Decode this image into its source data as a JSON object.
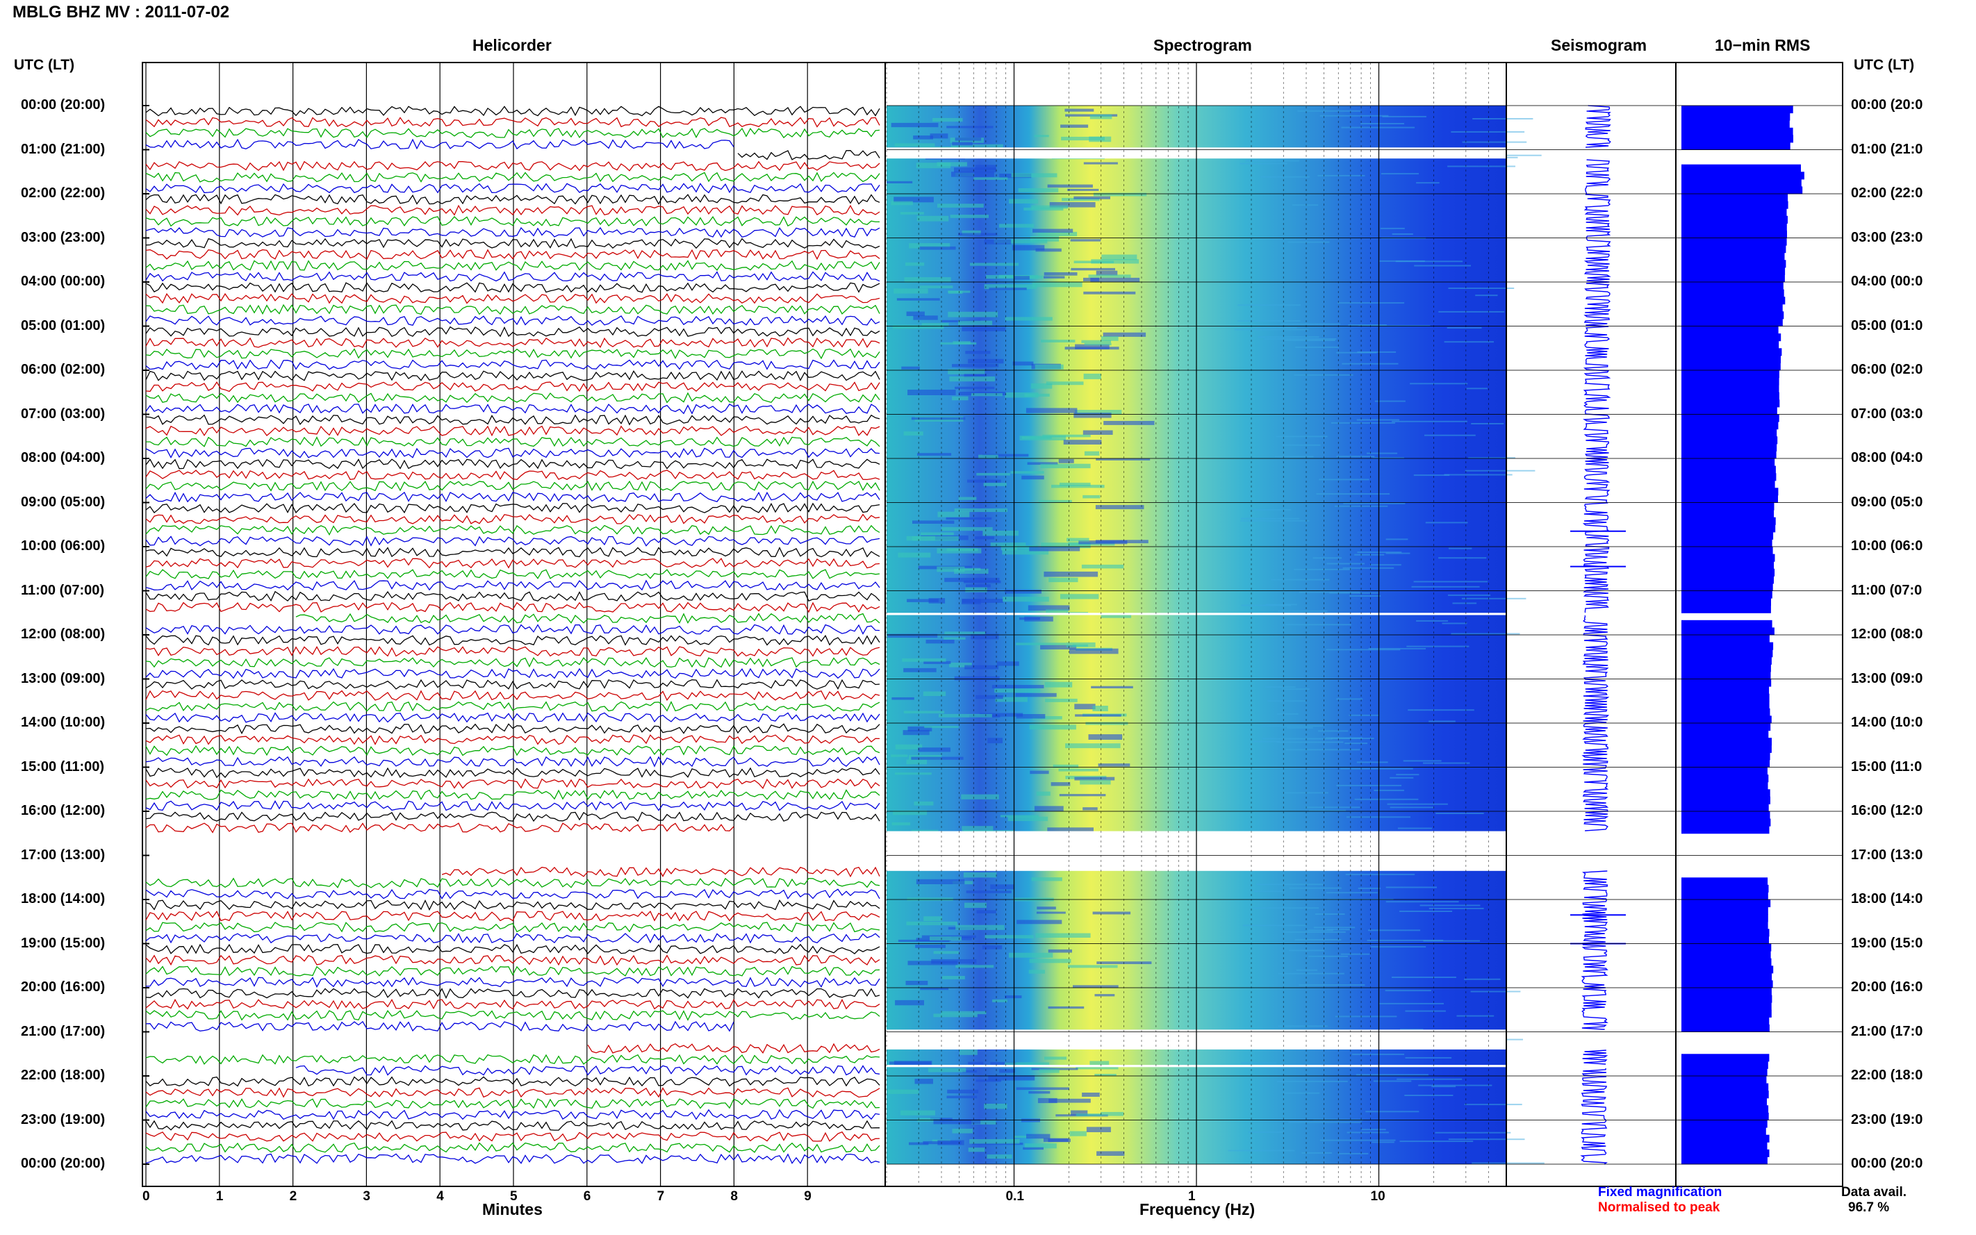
{
  "page_title": "MBLG BHZ MV : 2011-07-02",
  "panels": {
    "helicorder": "Helicorder",
    "spectrogram": "Spectrogram",
    "seismogram": "Seismogram",
    "rms": "10−min RMS"
  },
  "utc_label_left": "UTC (LT)",
  "utc_label_right": "UTC (LT)",
  "chart_data": {
    "type": "heatmap",
    "hours_left": [
      "00:00 (20:00)",
      "01:00 (21:00)",
      "02:00 (22:00)",
      "03:00 (23:00)",
      "04:00 (00:00)",
      "05:00 (01:00)",
      "06:00 (02:00)",
      "07:00 (03:00)",
      "08:00 (04:00)",
      "09:00 (05:00)",
      "10:00 (06:00)",
      "11:00 (07:00)",
      "12:00 (08:00)",
      "13:00 (09:00)",
      "14:00 (10:00)",
      "15:00 (11:00)",
      "16:00 (12:00)",
      "17:00 (13:00)",
      "18:00 (14:00)",
      "19:00 (15:00)",
      "20:00 (16:00)",
      "21:00 (17:00)",
      "22:00 (18:00)",
      "23:00 (19:00)",
      "00:00 (20:00)"
    ],
    "hours_right": [
      "00:00 (20:0",
      "01:00 (21:0",
      "02:00 (22:0",
      "03:00 (23:0",
      "04:00 (00:0",
      "05:00 (01:0",
      "06:00 (02:0",
      "07:00 (03:0",
      "08:00 (04:0",
      "09:00 (05:0",
      "10:00 (06:0",
      "11:00 (07:0",
      "12:00 (08:0",
      "13:00 (09:0",
      "14:00 (10:0",
      "15:00 (11:0",
      "16:00 (12:0",
      "17:00 (13:0",
      "18:00 (14:0",
      "19:00 (15:0",
      "20:00 (16:0",
      "21:00 (17:0",
      "22:00 (18:0",
      "23:00 (19:0",
      "00:00 (20:0"
    ],
    "minute_ticks": [
      "0",
      "1",
      "2",
      "3",
      "4",
      "5",
      "6",
      "7",
      "8",
      "9"
    ],
    "minute_range": [
      0,
      10
    ],
    "xlabel_minutes": "Minutes",
    "freq_ticks": [
      0.1,
      1,
      10
    ],
    "freq_tick_labels": [
      "0.1",
      "1",
      "10"
    ],
    "freq_range": [
      0.02,
      50
    ],
    "freq_scale": "log",
    "xlabel_freq": "Frequency (Hz)",
    "trace_colors": [
      "#000000",
      "#cc0000",
      "#00aa00",
      "#0000dd"
    ],
    "data_gaps_hours": [
      [
        0.95,
        1.2
      ],
      [
        11.5,
        11.55
      ],
      [
        16.45,
        17.35
      ],
      [
        20.95,
        21.4
      ],
      [
        21.75,
        21.8
      ]
    ],
    "seismogram_events_hours": [
      9.65,
      10.45,
      18.35,
      19.0
    ],
    "rms_profile": [
      0.88,
      0.97,
      0.84,
      0.84,
      0.82,
      0.79,
      0.78,
      0.77,
      0.76,
      0.74,
      0.74,
      0.73,
      0.72,
      0.71,
      0.71,
      0.7,
      0.7,
      0.69,
      0.7,
      0.72,
      0.71,
      0.7,
      0.69,
      0.69
    ]
  },
  "legend": {
    "fixed": "Fixed magnification",
    "normalised": "Normalised to peak",
    "fixed_color": "#0000ff",
    "normalised_color": "#ff0000"
  },
  "data_avail": {
    "label": "Data avail.",
    "value": "96.7 %"
  }
}
